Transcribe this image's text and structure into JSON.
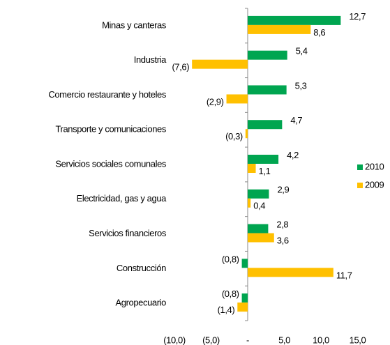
{
  "chart_data": {
    "type": "hbar",
    "categories": [
      "Minas y canteras",
      "Industria",
      "Comercio restaurante y hoteles",
      "Transporte y comunicaciones",
      "Servicios sociales comunales",
      "Electricidad, gas y agua",
      "Servicios financieros",
      "Construcción",
      "Agropecuario"
    ],
    "series": [
      {
        "name": "2010",
        "color": "#00a550",
        "values": [
          12.7,
          5.4,
          5.3,
          4.7,
          4.2,
          2.9,
          2.8,
          -0.8,
          -0.8
        ],
        "value_labels": [
          "12,7",
          "5,4",
          "5,3",
          "4,7",
          "4,2",
          "2,9",
          "2,8",
          "(0,8)",
          "(0,8)"
        ]
      },
      {
        "name": "2009",
        "color": "#ffc000",
        "values": [
          8.6,
          -7.6,
          -2.9,
          -0.3,
          1.1,
          0.4,
          3.6,
          11.7,
          -1.4
        ],
        "value_labels": [
          "8,6",
          "(7,6)",
          "(2,9)",
          "(0,3)",
          "1,1",
          "0,4",
          "3,6",
          "11,7",
          "(1,4)"
        ]
      }
    ],
    "xlim": [
      -10,
      15
    ],
    "xticks": [
      {
        "value": -10,
        "label": "(10,0)"
      },
      {
        "value": -5,
        "label": "(5,0)"
      },
      {
        "value": 0,
        "label": "-"
      },
      {
        "value": 5,
        "label": "5,0"
      },
      {
        "value": 10,
        "label": "10,0"
      },
      {
        "value": 15,
        "label": "15,0"
      }
    ],
    "grid": false,
    "legend": "right"
  }
}
